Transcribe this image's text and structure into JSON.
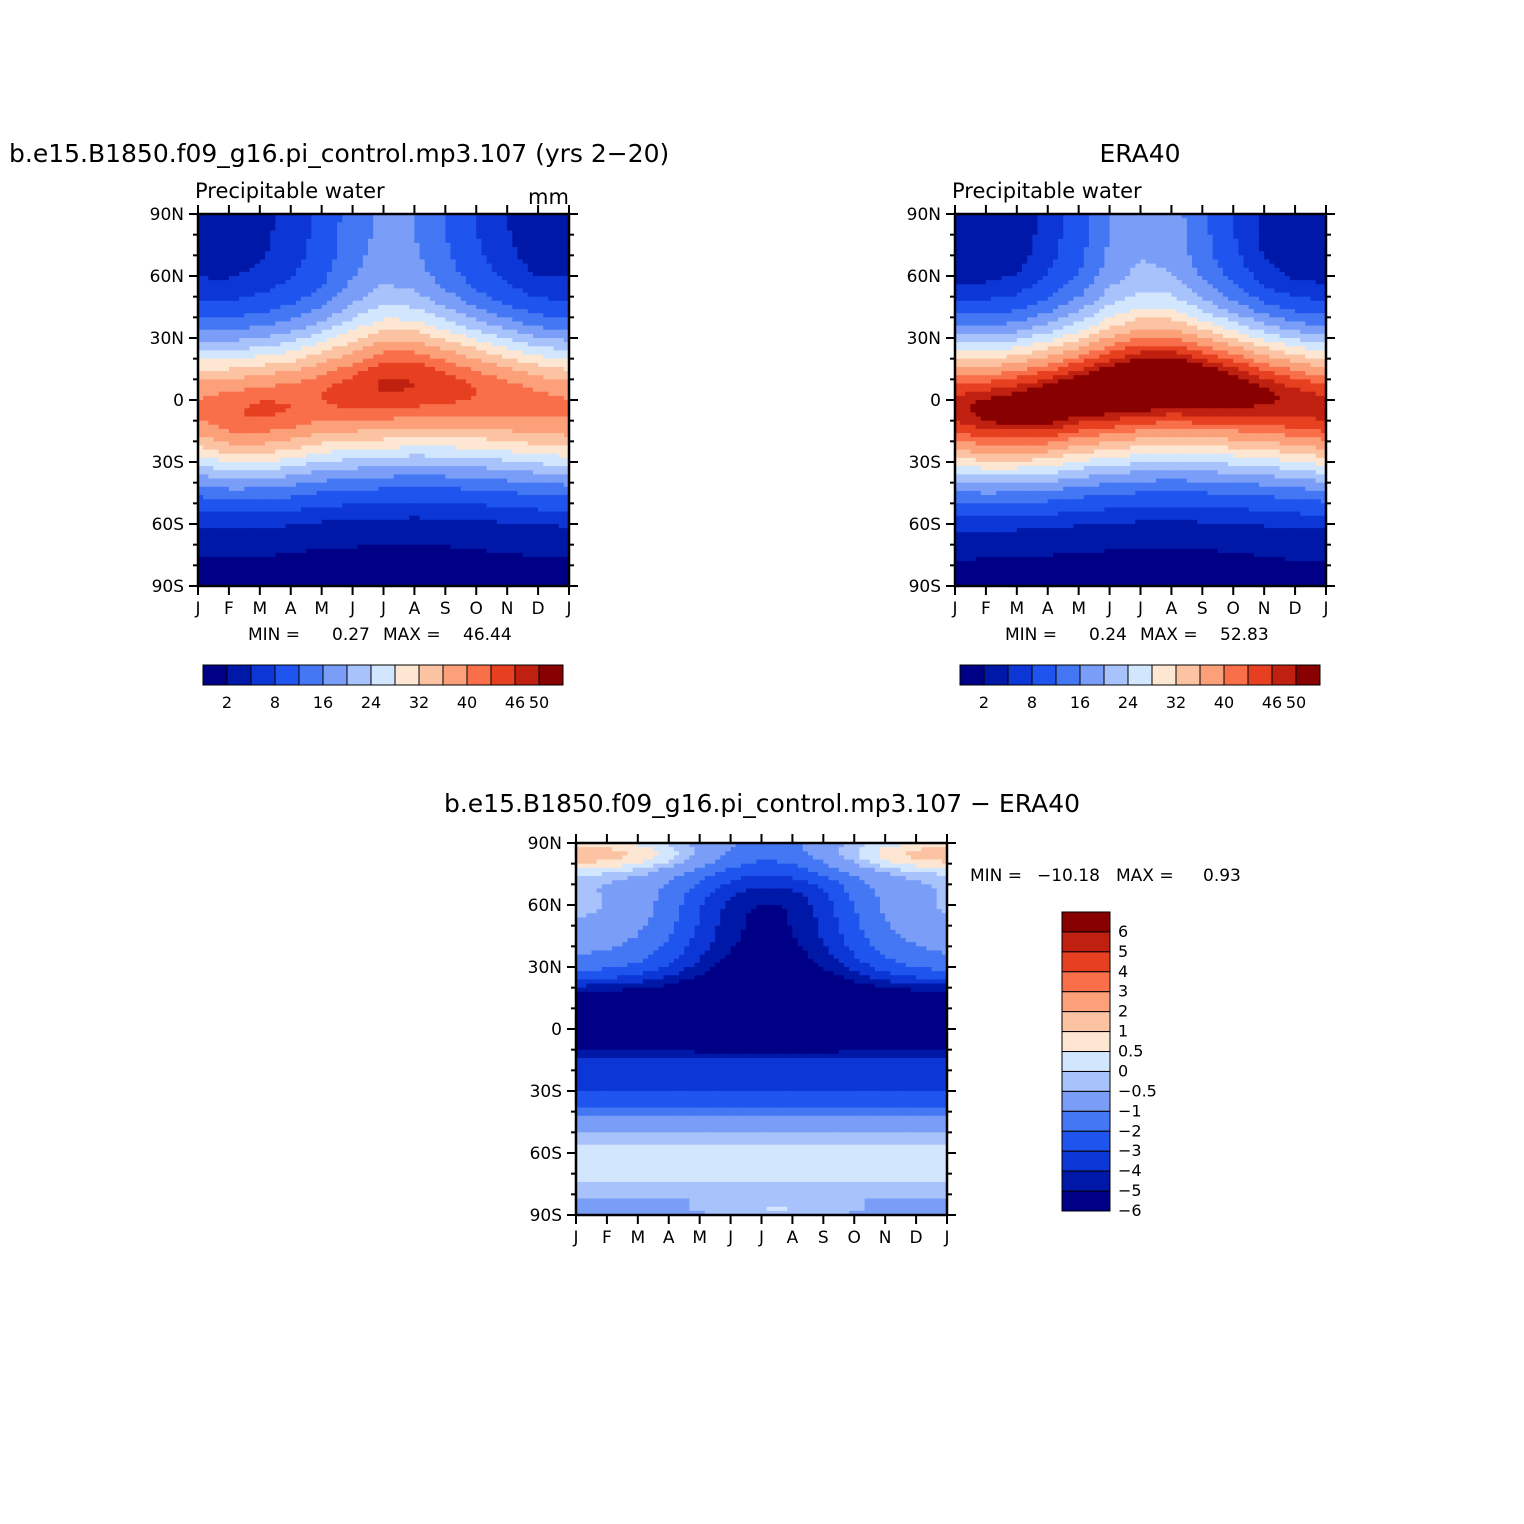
{
  "colors": {
    "abs_scale": [
      "#000087",
      "#0018a8",
      "#0c36d6",
      "#1f55ee",
      "#4477f4",
      "#7a9ef8",
      "#a8c2fb",
      "#d2e6fe",
      "#fde7d3",
      "#fcc3a3",
      "#fca07a",
      "#f96f4a",
      "#e64020",
      "#c02010",
      "#880000"
    ],
    "diff_scale": [
      "#000087",
      "#0018a8",
      "#0c36d6",
      "#1f55ee",
      "#4477f4",
      "#7a9ef8",
      "#a8c2fb",
      "#d2e6fe",
      "#fde7d3",
      "#fcc3a3",
      "#fca07a",
      "#f96f4a",
      "#e64020",
      "#c02010",
      "#880000"
    ]
  },
  "chart_data": [
    {
      "type": "heatmap",
      "title": "b.e15.B1850.f09_g16.pi_control.mp3.107 (yrs 2−20)",
      "subtitle": "Precipitable water",
      "units": "mm",
      "x": [
        "J",
        "F",
        "M",
        "A",
        "M",
        "J",
        "J",
        "A",
        "S",
        "O",
        "N",
        "D",
        "J"
      ],
      "y": [
        "90S",
        "60S",
        "30S",
        "0",
        "30N",
        "60N",
        "90N"
      ],
      "ylim": [
        -90,
        90
      ],
      "min_label": "MIN =",
      "min_value": "0.27",
      "max_label": "MAX =",
      "max_value": "46.44",
      "colorbar_labels": [
        "2",
        "8",
        "16",
        "24",
        "32",
        "40",
        "46",
        "50"
      ],
      "field": {
        "description_model": "equatorial_peak",
        "peak_lat_by_month": [
          -4,
          -6,
          -5,
          -3,
          1,
          4,
          7,
          8,
          6,
          4,
          1,
          -2,
          -4
        ],
        "peak_value_by_month": [
          40.5,
          42.5,
          43.5,
          43.0,
          43.0,
          44.5,
          46.4,
          46.0,
          44.5,
          43.0,
          42.0,
          41.0,
          40.5
        ],
        "north_pole_by_month": [
          3,
          3,
          4,
          6,
          9,
          14,
          17,
          16,
          12,
          8,
          5,
          3,
          3
        ],
        "south_pole_by_month": [
          1,
          0.8,
          0.8,
          0.7,
          0.5,
          0.4,
          0.3,
          0.3,
          0.4,
          0.6,
          0.8,
          1,
          1
        ]
      }
    },
    {
      "type": "heatmap",
      "title": "ERA40",
      "subtitle": "Precipitable water",
      "x": [
        "J",
        "F",
        "M",
        "A",
        "M",
        "J",
        "J",
        "A",
        "S",
        "O",
        "N",
        "D",
        "J"
      ],
      "y": [
        "90S",
        "60S",
        "30S",
        "0",
        "30N",
        "60N",
        "90N"
      ],
      "ylim": [
        -90,
        90
      ],
      "min_label": "MIN =",
      "min_value": "0.24",
      "max_label": "MAX =",
      "max_value": "52.83",
      "colorbar_labels": [
        "2",
        "8",
        "16",
        "24",
        "32",
        "40",
        "46",
        "50"
      ],
      "field": {
        "peak_lat_by_month": [
          -4,
          -5,
          -4,
          -2,
          2,
          5,
          8,
          9,
          7,
          5,
          2,
          -1,
          -4
        ],
        "peak_value_by_month": [
          47,
          49,
          50,
          51,
          51,
          52,
          52.8,
          52.5,
          51.5,
          50,
          48.5,
          47.5,
          47
        ],
        "north_pole_by_month": [
          2,
          2,
          3,
          6,
          10,
          16,
          19,
          18,
          13,
          8,
          4,
          2,
          2
        ],
        "south_pole_by_month": [
          1,
          0.8,
          0.7,
          0.6,
          0.5,
          0.4,
          0.3,
          0.3,
          0.4,
          0.6,
          0.8,
          1,
          1
        ]
      }
    },
    {
      "type": "heatmap",
      "title": "b.e15.B1850.f09_g16.pi_control.mp3.107 − ERA40",
      "x": [
        "J",
        "F",
        "M",
        "A",
        "M",
        "J",
        "J",
        "A",
        "S",
        "O",
        "N",
        "D",
        "J"
      ],
      "y": [
        "90S",
        "60S",
        "30S",
        "0",
        "30N",
        "60N",
        "90N"
      ],
      "ylim": [
        -90,
        90
      ],
      "min_label": "MIN =",
      "min_value": "−10.18",
      "max_label": "MAX =",
      "max_value": "0.93",
      "colorbar_labels": [
        "6",
        "5",
        "4",
        "3",
        "2",
        "1",
        "0.5",
        "0",
        "−0.5",
        "−1",
        "−2",
        "−3",
        "−4",
        "−5",
        "−6"
      ],
      "levels": [
        -6,
        -5,
        -4,
        -3,
        -2,
        -1,
        -0.5,
        0,
        0.5,
        1,
        2,
        3,
        4,
        5,
        6
      ]
    }
  ]
}
